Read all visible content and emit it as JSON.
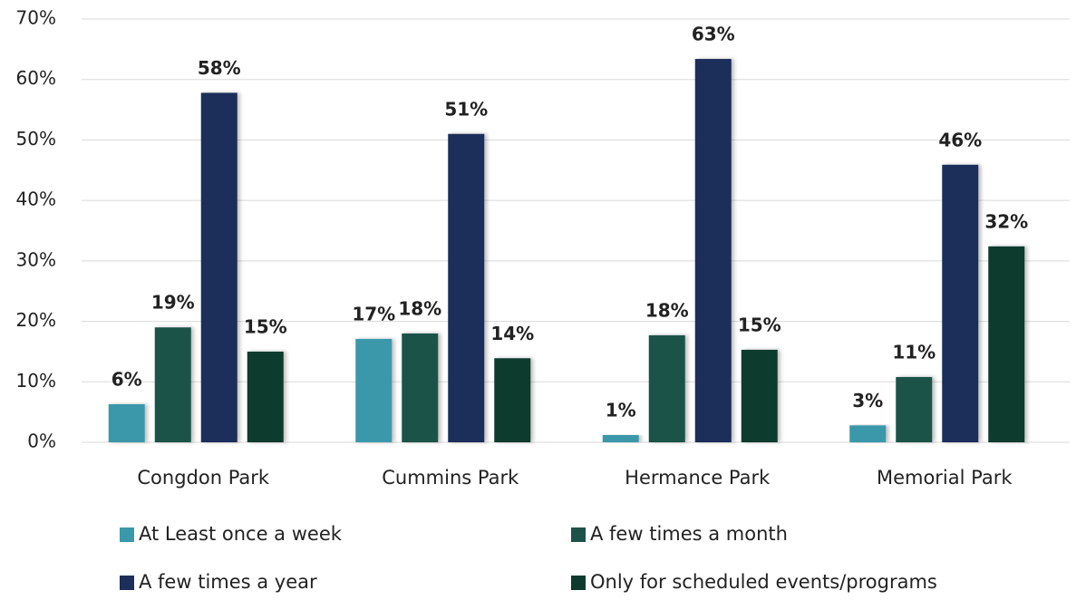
{
  "chart_data": {
    "type": "bar",
    "categories": [
      "Congdon Park",
      "Cummins Park",
      "Hermance Park",
      "Memorial Park"
    ],
    "series": [
      {
        "name": "At Least once a week",
        "color": "#3a98ab",
        "values": [
          6.3,
          17.1,
          1.2,
          2.8
        ],
        "value_labels": [
          "6%",
          "17%",
          "1%",
          "3%"
        ]
      },
      {
        "name": "A few times a month",
        "color": "#1c5248",
        "values": [
          19.0,
          18.0,
          17.7,
          10.8
        ],
        "value_labels": [
          "19%",
          "18%",
          "18%",
          "11%"
        ]
      },
      {
        "name": "A few times a year",
        "color": "#1b2f5a",
        "values": [
          57.8,
          51.0,
          63.4,
          45.9
        ],
        "value_labels": [
          "58%",
          "51%",
          "63%",
          "46%"
        ]
      },
      {
        "name": "Only for scheduled events/programs",
        "color": "#0e3a2e",
        "values": [
          15.0,
          13.9,
          15.3,
          32.4
        ],
        "value_labels": [
          "15%",
          "14%",
          "15%",
          "32%"
        ]
      }
    ],
    "ylim": [
      0,
      70
    ],
    "yticks": [
      {
        "value": 0,
        "label": "0%"
      },
      {
        "value": 10,
        "label": "10%"
      },
      {
        "value": 20,
        "label": "20%"
      },
      {
        "value": 30,
        "label": "30%"
      },
      {
        "value": 40,
        "label": "40%"
      },
      {
        "value": 50,
        "label": "50%"
      },
      {
        "value": 60,
        "label": "60%"
      },
      {
        "value": 70,
        "label": "70%"
      }
    ],
    "grid": true,
    "legend": "bottom"
  }
}
